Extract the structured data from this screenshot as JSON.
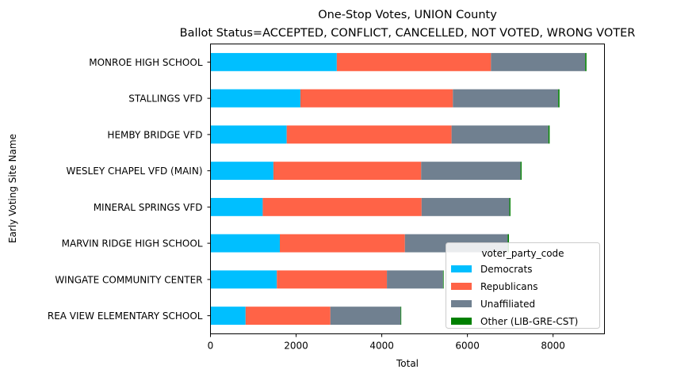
{
  "chart_data": {
    "type": "bar",
    "orientation": "horizontal",
    "stacked": true,
    "title": "One-Stop Votes, UNION County",
    "subtitle": "Ballot Status=ACCEPTED, CONFLICT, CANCELLED, NOT VOTED, WRONG VOTER",
    "xlabel": "Total",
    "ylabel": "Early Voting Site Name",
    "xlim": [
      0,
      9200
    ],
    "x_ticks": [
      0,
      2000,
      4000,
      6000,
      8000
    ],
    "categories": [
      "MONROE HIGH SCHOOL",
      "STALLINGS VFD",
      "HEMBY BRIDGE VFD",
      "WESLEY CHAPEL VFD (MAIN)",
      "MINERAL SPRINGS VFD",
      "MARVIN RIDGE HIGH SCHOOL",
      "WINGATE COMMUNITY CENTER",
      "REA VIEW ELEMENTARY SCHOOL"
    ],
    "series": [
      {
        "name": "Democrats",
        "color": "#00bfff",
        "values": [
          2950,
          2100,
          1780,
          1470,
          1220,
          1620,
          1550,
          820
        ]
      },
      {
        "name": "Republicans",
        "color": "#ff6347",
        "values": [
          3600,
          3560,
          3850,
          3450,
          3710,
          2920,
          2570,
          1980
        ]
      },
      {
        "name": "Unaffiliated",
        "color": "#708090",
        "values": [
          2200,
          2460,
          2260,
          2320,
          2050,
          2400,
          1310,
          1640
        ]
      },
      {
        "name": "Other (LIB-GRE-CST)",
        "color": "#008000",
        "values": [
          30,
          30,
          30,
          25,
          25,
          30,
          15,
          15
        ]
      }
    ],
    "legend": {
      "title": "voter_party_code",
      "placement": "lower right"
    },
    "grid": false
  }
}
